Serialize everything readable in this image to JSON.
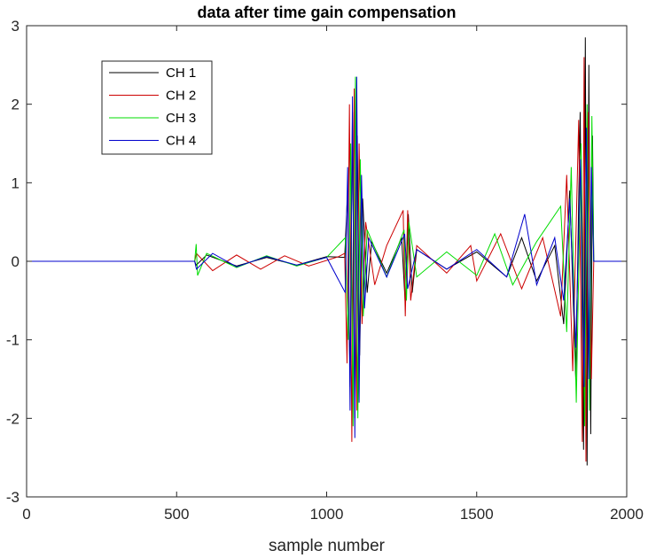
{
  "chart_data": {
    "type": "line",
    "title": "data after time gain compensation",
    "xlabel": "sample number",
    "ylabel": "",
    "xlim": [
      0,
      2000
    ],
    "ylim": [
      -3,
      3
    ],
    "xticks": [
      "0",
      "500",
      "1000",
      "1500",
      "2000"
    ],
    "yticks": [
      "-3",
      "-2",
      "-1",
      "0",
      "1",
      "2",
      "3"
    ],
    "grid": false,
    "legend_position": "top-left",
    "series": [
      {
        "name": "CH 1",
        "color": "#000000",
        "points": [
          [
            0,
            0
          ],
          [
            560,
            0
          ],
          [
            565,
            -0.05
          ],
          [
            600,
            0.08
          ],
          [
            700,
            -0.06
          ],
          [
            800,
            0.05
          ],
          [
            900,
            -0.05
          ],
          [
            1000,
            0.06
          ],
          [
            1060,
            0.05
          ],
          [
            1070,
            0.9
          ],
          [
            1078,
            -1.6
          ],
          [
            1086,
            1.9
          ],
          [
            1094,
            -2.0
          ],
          [
            1102,
            1.6
          ],
          [
            1110,
            -1.2
          ],
          [
            1120,
            0.8
          ],
          [
            1135,
            -0.4
          ],
          [
            1150,
            0.25
          ],
          [
            1200,
            -0.15
          ],
          [
            1250,
            0.3
          ],
          [
            1262,
            -0.55
          ],
          [
            1272,
            0.6
          ],
          [
            1285,
            -0.4
          ],
          [
            1300,
            0.15
          ],
          [
            1400,
            -0.1
          ],
          [
            1500,
            0.12
          ],
          [
            1600,
            -0.2
          ],
          [
            1650,
            0.3
          ],
          [
            1700,
            -0.25
          ],
          [
            1760,
            0.2
          ],
          [
            1790,
            -0.8
          ],
          [
            1810,
            0.9
          ],
          [
            1830,
            -1.5
          ],
          [
            1845,
            1.9
          ],
          [
            1856,
            -2.4
          ],
          [
            1862,
            2.85
          ],
          [
            1868,
            -2.6
          ],
          [
            1874,
            2.5
          ],
          [
            1880,
            -2.2
          ],
          [
            1886,
            1.6
          ],
          [
            1890,
            0
          ],
          [
            2000,
            0
          ]
        ]
      },
      {
        "name": "CH 2",
        "color": "#cc0000",
        "points": [
          [
            0,
            0
          ],
          [
            560,
            0
          ],
          [
            566,
            0.1
          ],
          [
            620,
            -0.12
          ],
          [
            700,
            0.08
          ],
          [
            780,
            -0.1
          ],
          [
            860,
            0.07
          ],
          [
            940,
            -0.06
          ],
          [
            1040,
            0.06
          ],
          [
            1060,
            0.1
          ],
          [
            1068,
            -1.3
          ],
          [
            1076,
            2.0
          ],
          [
            1084,
            -2.3
          ],
          [
            1092,
            2.2
          ],
          [
            1100,
            -1.9
          ],
          [
            1108,
            1.5
          ],
          [
            1118,
            -0.8
          ],
          [
            1130,
            0.5
          ],
          [
            1160,
            -0.3
          ],
          [
            1200,
            0.2
          ],
          [
            1255,
            0.65
          ],
          [
            1262,
            -0.7
          ],
          [
            1270,
            0.65
          ],
          [
            1280,
            -0.5
          ],
          [
            1300,
            0.2
          ],
          [
            1400,
            -0.15
          ],
          [
            1480,
            0.2
          ],
          [
            1500,
            -0.25
          ],
          [
            1580,
            0.35
          ],
          [
            1650,
            -0.35
          ],
          [
            1720,
            0.3
          ],
          [
            1780,
            -0.7
          ],
          [
            1800,
            1.1
          ],
          [
            1820,
            -1.4
          ],
          [
            1840,
            1.8
          ],
          [
            1852,
            -2.3
          ],
          [
            1858,
            2.6
          ],
          [
            1864,
            -2.55
          ],
          [
            1872,
            1.9
          ],
          [
            1882,
            -1.5
          ],
          [
            1890,
            0
          ],
          [
            2000,
            0
          ]
        ]
      },
      {
        "name": "CH 3",
        "color": "#00dd00",
        "points": [
          [
            0,
            0
          ],
          [
            560,
            0
          ],
          [
            565,
            0.22
          ],
          [
            570,
            -0.18
          ],
          [
            600,
            0.1
          ],
          [
            700,
            -0.08
          ],
          [
            800,
            0.07
          ],
          [
            900,
            -0.06
          ],
          [
            1000,
            0.05
          ],
          [
            1062,
            0.3
          ],
          [
            1072,
            -1.0
          ],
          [
            1080,
            1.5
          ],
          [
            1088,
            -2.1
          ],
          [
            1096,
            2.35
          ],
          [
            1104,
            -2.0
          ],
          [
            1112,
            1.3
          ],
          [
            1122,
            -0.7
          ],
          [
            1135,
            0.4
          ],
          [
            1200,
            -0.2
          ],
          [
            1258,
            0.4
          ],
          [
            1266,
            -0.5
          ],
          [
            1274,
            0.5
          ],
          [
            1300,
            -0.2
          ],
          [
            1400,
            0.12
          ],
          [
            1500,
            -0.18
          ],
          [
            1560,
            0.35
          ],
          [
            1620,
            -0.3
          ],
          [
            1700,
            0.25
          ],
          [
            1780,
            0.7
          ],
          [
            1800,
            -0.9
          ],
          [
            1815,
            1.2
          ],
          [
            1832,
            -1.8
          ],
          [
            1848,
            1.5
          ],
          [
            1860,
            -2.1
          ],
          [
            1868,
            2.0
          ],
          [
            1876,
            -1.9
          ],
          [
            1884,
            1.85
          ],
          [
            1890,
            0
          ],
          [
            2000,
            0
          ]
        ]
      },
      {
        "name": "CH 4",
        "color": "#0000cc",
        "points": [
          [
            0,
            0
          ],
          [
            560,
            0
          ],
          [
            566,
            -0.1
          ],
          [
            620,
            0.1
          ],
          [
            700,
            -0.07
          ],
          [
            800,
            0.06
          ],
          [
            900,
            -0.05
          ],
          [
            1000,
            0.05
          ],
          [
            1062,
            -0.4
          ],
          [
            1070,
            1.2
          ],
          [
            1078,
            -1.9
          ],
          [
            1086,
            2.1
          ],
          [
            1094,
            -2.25
          ],
          [
            1100,
            2.35
          ],
          [
            1108,
            -1.8
          ],
          [
            1116,
            1.1
          ],
          [
            1126,
            -0.6
          ],
          [
            1140,
            0.3
          ],
          [
            1200,
            -0.2
          ],
          [
            1260,
            0.35
          ],
          [
            1270,
            -0.35
          ],
          [
            1300,
            0.15
          ],
          [
            1400,
            -0.1
          ],
          [
            1500,
            0.15
          ],
          [
            1600,
            -0.2
          ],
          [
            1660,
            0.6
          ],
          [
            1700,
            -0.3
          ],
          [
            1760,
            0.3
          ],
          [
            1790,
            -0.5
          ],
          [
            1810,
            0.8
          ],
          [
            1830,
            -1.1
          ],
          [
            1846,
            1.3
          ],
          [
            1858,
            -1.6
          ],
          [
            1866,
            1.7
          ],
          [
            1874,
            -1.5
          ],
          [
            1882,
            1.2
          ],
          [
            1890,
            0
          ],
          [
            2000,
            0
          ]
        ]
      }
    ]
  }
}
